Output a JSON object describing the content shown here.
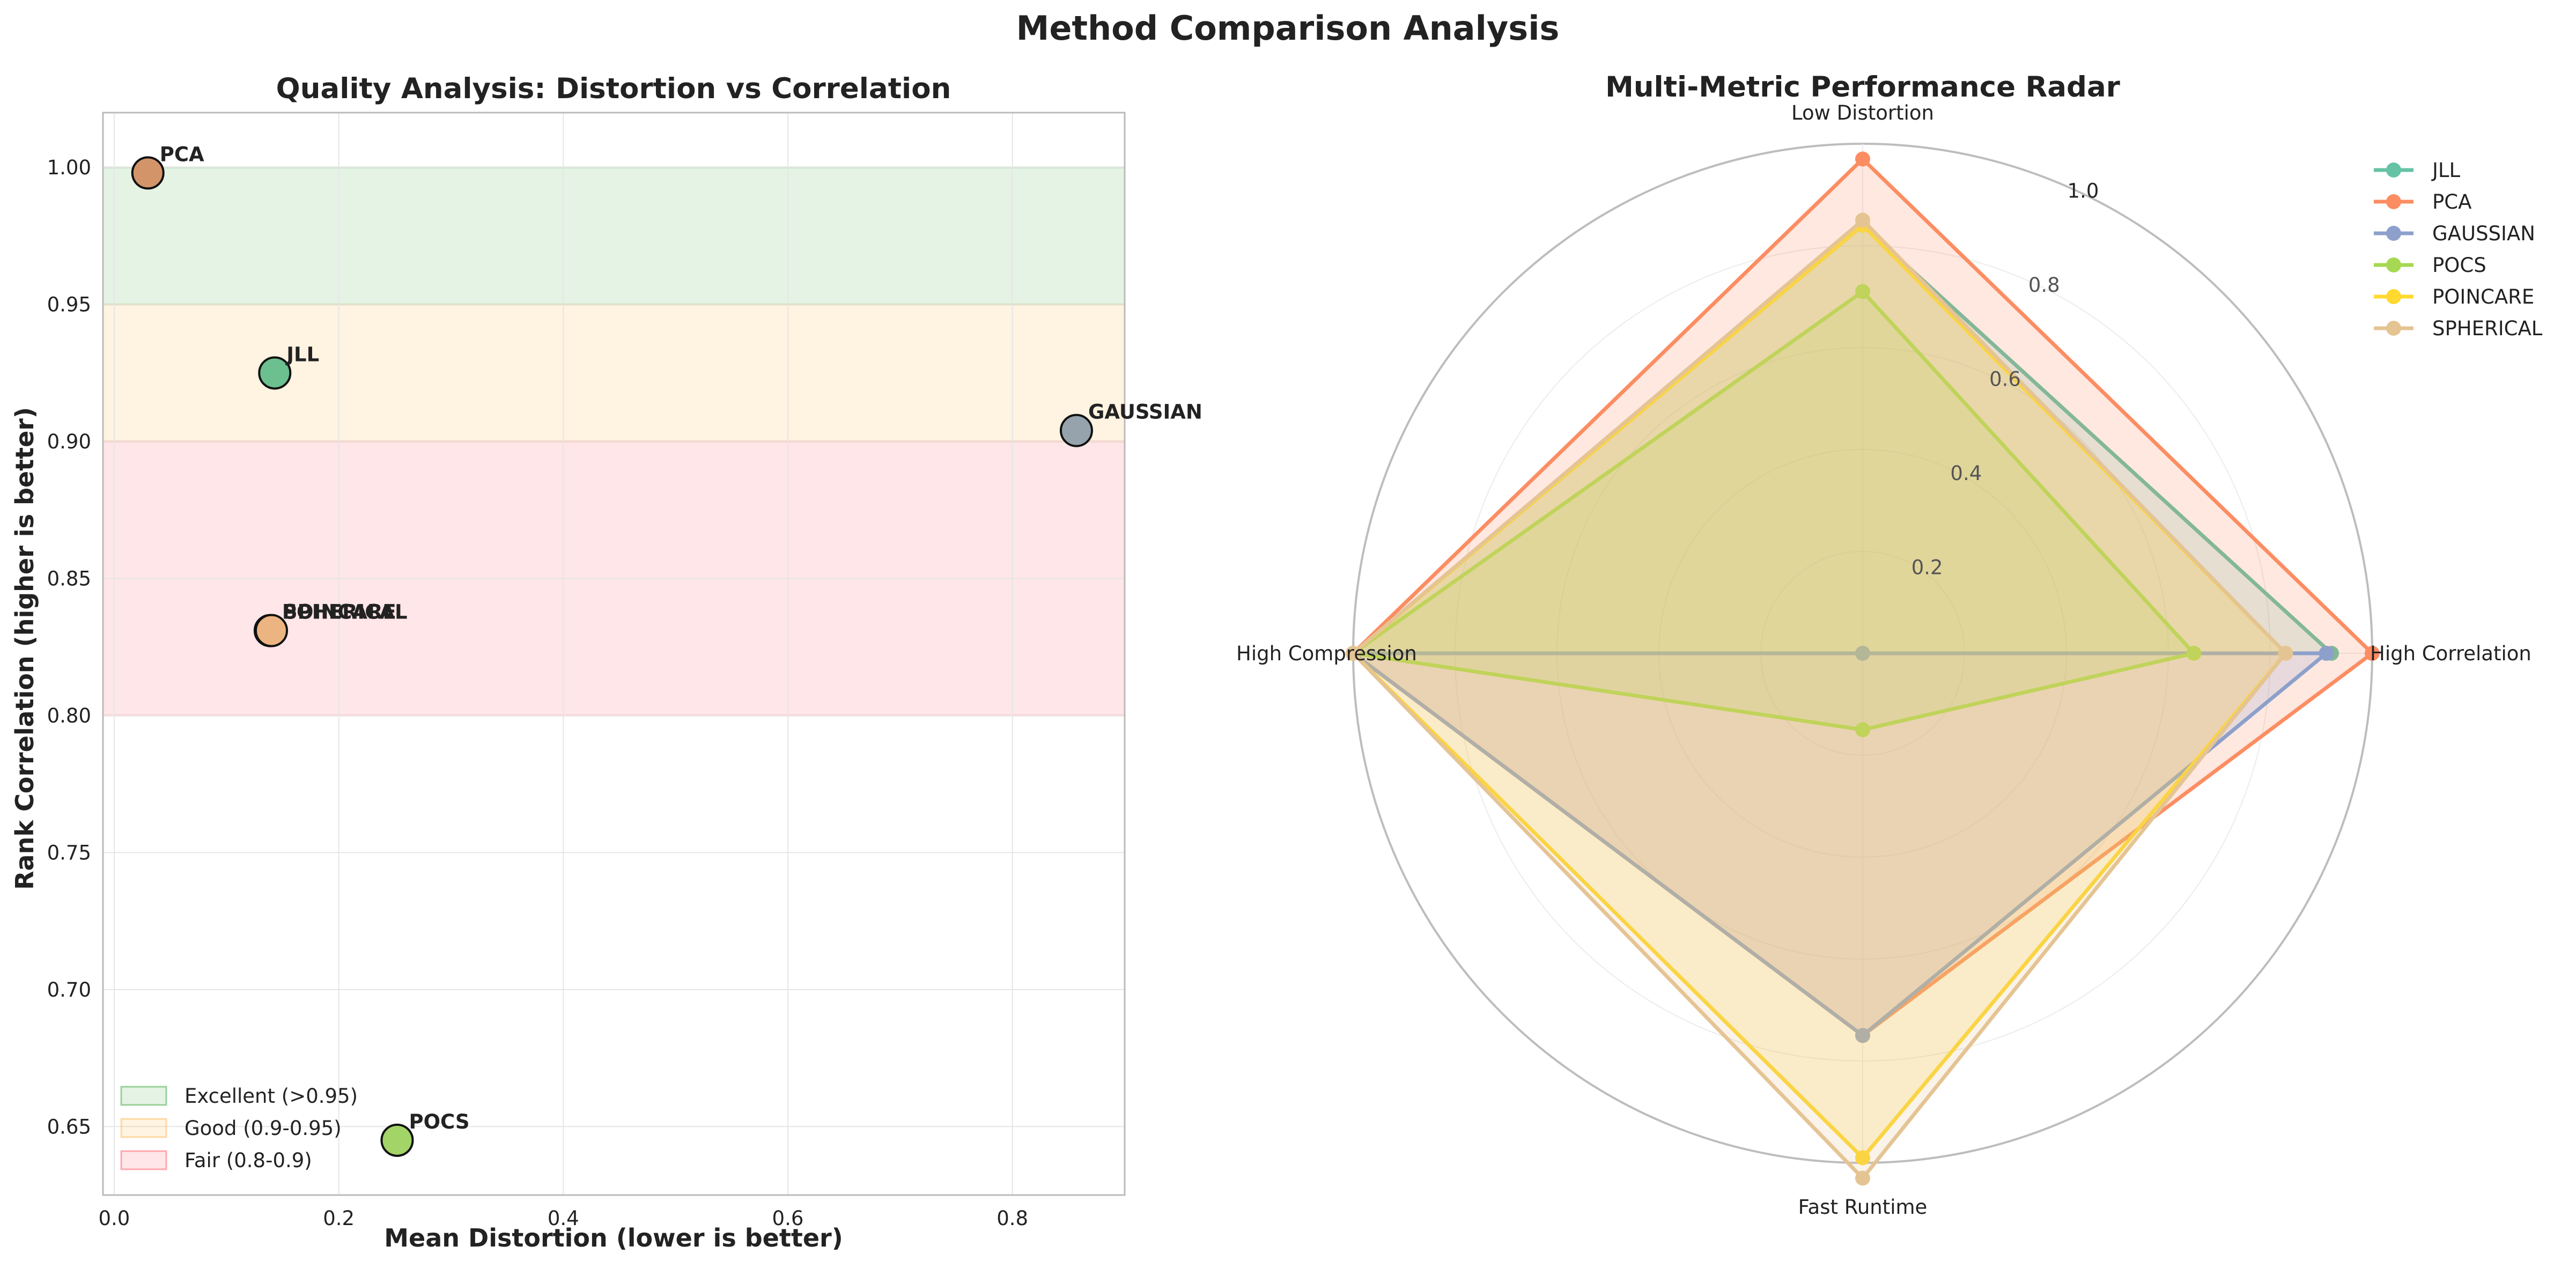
{
  "figure": {
    "suptitle": "Method Comparison Analysis"
  },
  "chart_data": [
    {
      "type": "scatter",
      "title": "Quality Analysis: Distortion vs Correlation",
      "xlabel": "Mean Distortion (lower is better)",
      "ylabel": "Rank Correlation (higher is better)",
      "xlim": [
        -0.01,
        0.9
      ],
      "ylim": [
        0.625,
        1.02
      ],
      "xticks": [
        0.0,
        0.2,
        0.4,
        0.6,
        0.8
      ],
      "xtick_labels": [
        "0.0",
        "0.2",
        "0.4",
        "0.6",
        "0.8"
      ],
      "yticks": [
        0.65,
        0.7,
        0.75,
        0.8,
        0.85,
        0.9,
        0.95,
        1.0
      ],
      "ytick_labels": [
        "0.65",
        "0.70",
        "0.75",
        "0.80",
        "0.85",
        "0.90",
        "0.95",
        "1.00"
      ],
      "grid": true,
      "legend_position": "lower-left",
      "bands": [
        {
          "label": "Excellent (>0.95)",
          "y0": 0.95,
          "y1": 1.0,
          "color": "#2ca02c",
          "opacity": 0.12
        },
        {
          "label": "Good (0.9-0.95)",
          "y0": 0.9,
          "y1": 0.95,
          "color": "#ffb347",
          "opacity": 0.16
        },
        {
          "label": "Fair (0.8-0.9)",
          "y0": 0.8,
          "y1": 0.9,
          "color": "#ff4d5a",
          "opacity": 0.14
        }
      ],
      "points": [
        {
          "label": "PCA",
          "x": 0.03,
          "y": 0.998,
          "color": "#d4946a"
        },
        {
          "label": "JLL",
          "x": 0.143,
          "y": 0.925,
          "color": "#6cbf8e"
        },
        {
          "label": "GAUSSIAN",
          "x": 0.857,
          "y": 0.904,
          "color": "#96a3ad"
        },
        {
          "label": "POINCARE",
          "x": 0.139,
          "y": 0.831,
          "color": "#f2c06a"
        },
        {
          "label": "SPHERICAL",
          "x": 0.14,
          "y": 0.831,
          "color": "#ebb480"
        },
        {
          "label": "POCS",
          "x": 0.252,
          "y": 0.645,
          "color": "#a2d467"
        }
      ]
    },
    {
      "type": "radar",
      "title": "Multi-Metric Performance Radar",
      "axes": [
        "Low Distortion",
        "High Correlation",
        "Fast Runtime",
        "High Compression"
      ],
      "rticks": [
        0.2,
        0.4,
        0.6,
        0.8,
        1.0
      ],
      "rtick_labels": [
        "0.2",
        "0.4",
        "0.6",
        "0.8",
        "1.0"
      ],
      "rmax": 1.0,
      "legend_position": "upper-right",
      "series": [
        {
          "name": "JLL",
          "color": "#66c2a5",
          "values": [
            0.84,
            0.92,
            0.0,
            1.0
          ]
        },
        {
          "name": "PCA",
          "color": "#fc8d62",
          "values": [
            0.97,
            1.0,
            0.75,
            1.0
          ]
        },
        {
          "name": "GAUSSIAN",
          "color": "#8da0cb",
          "values": [
            0.0,
            0.91,
            0.75,
            1.0
          ]
        },
        {
          "name": "POCS",
          "color": "#a6d854",
          "values": [
            0.71,
            0.65,
            0.15,
            1.0
          ]
        },
        {
          "name": "POINCARE",
          "color": "#ffd92f",
          "values": [
            0.84,
            0.83,
            0.99,
            1.0
          ]
        },
        {
          "name": "SPHERICAL",
          "color": "#e5c494",
          "values": [
            0.85,
            0.83,
            1.03,
            1.0
          ]
        }
      ]
    }
  ]
}
